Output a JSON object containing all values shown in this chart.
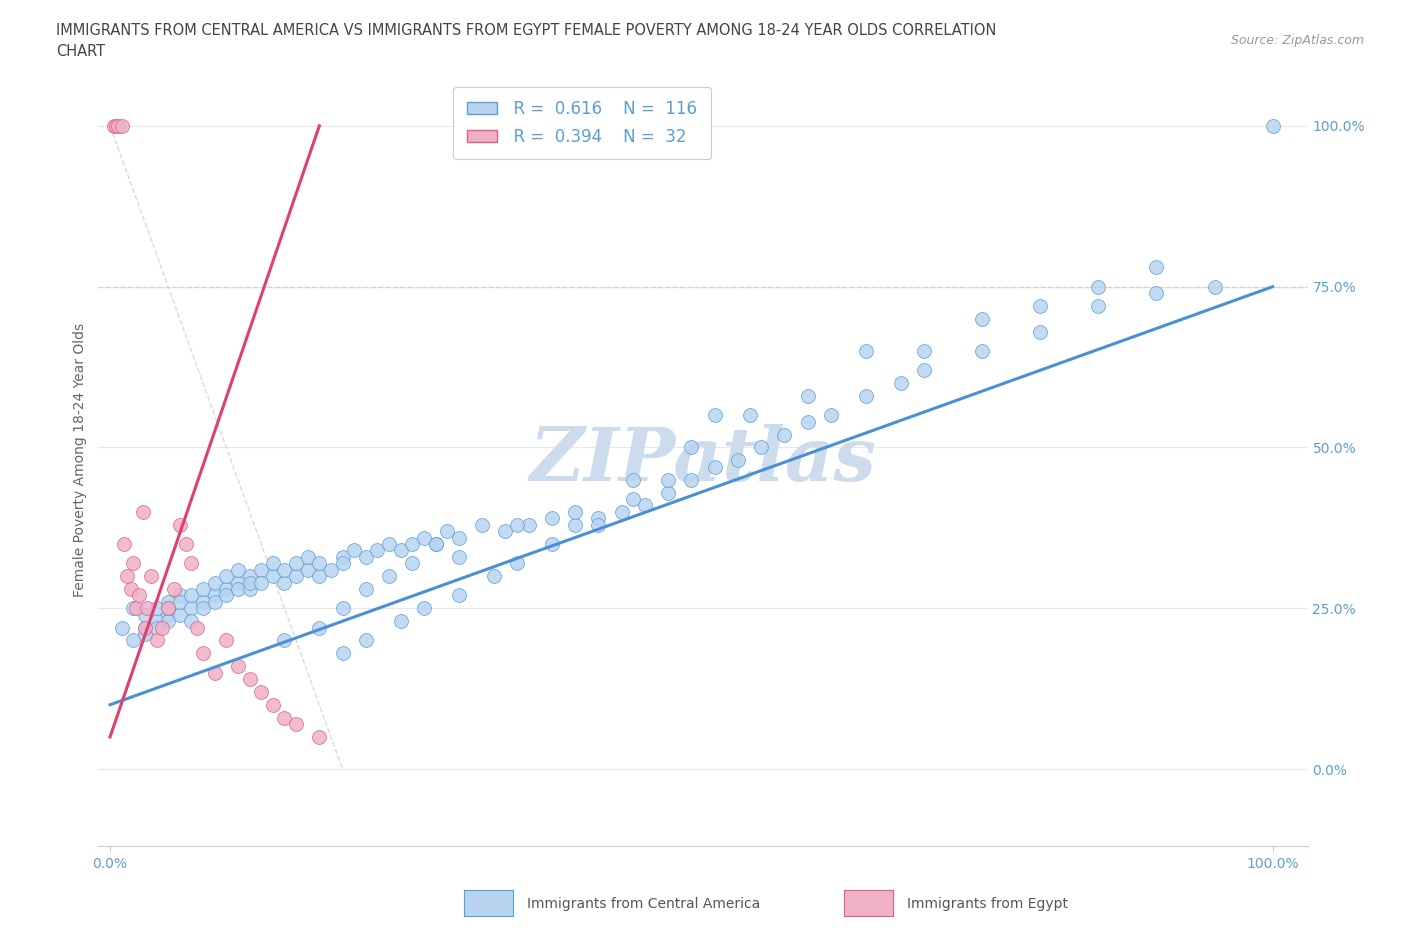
{
  "title_line1": "IMMIGRANTS FROM CENTRAL AMERICA VS IMMIGRANTS FROM EGYPT FEMALE POVERTY AMONG 18-24 YEAR OLDS CORRELATION",
  "title_line2": "CHART",
  "source_text": "Source: ZipAtlas.com",
  "ylabel": "Female Poverty Among 18-24 Year Olds",
  "ytick_values": [
    0,
    25,
    50,
    75,
    100
  ],
  "xlim": [
    -1,
    103
  ],
  "ylim": [
    -12,
    108
  ],
  "blue_R": 0.616,
  "blue_N": 116,
  "pink_R": 0.394,
  "pink_N": 32,
  "blue_color": "#b8d4f0",
  "pink_color": "#f0b0c8",
  "blue_edge_color": "#5a9fd4",
  "pink_edge_color": "#e06080",
  "blue_line_color": "#4a90d4",
  "pink_line_color": "#e04070",
  "watermark_color": "#ccdcec",
  "grid_color": "#e8e8e8",
  "title_color": "#444444",
  "ylabel_color": "#666666",
  "tick_color": "#5a9fd4",
  "legend_box_color": "#5a9fd4",
  "legend_R_color": "#5a9fd4",
  "dashed_line_y": 75,
  "blue_trend_x0": 0,
  "blue_trend_y0": 10,
  "blue_trend_x1": 100,
  "blue_trend_y1": 75,
  "pink_trend_x0": 0,
  "pink_trend_y0": 5,
  "pink_trend_x1": 18,
  "pink_trend_y1": 100,
  "blue_scatter_x": [
    1,
    2,
    2,
    3,
    3,
    3,
    4,
    4,
    4,
    5,
    5,
    5,
    5,
    6,
    6,
    6,
    7,
    7,
    7,
    8,
    8,
    8,
    9,
    9,
    9,
    10,
    10,
    10,
    11,
    11,
    11,
    12,
    12,
    12,
    13,
    13,
    14,
    14,
    15,
    15,
    16,
    16,
    17,
    17,
    18,
    18,
    19,
    20,
    20,
    21,
    22,
    23,
    24,
    25,
    26,
    27,
    28,
    29,
    30,
    32,
    34,
    36,
    38,
    40,
    42,
    44,
    46,
    48,
    50,
    52,
    54,
    56,
    58,
    60,
    62,
    65,
    68,
    70,
    75,
    80,
    85,
    90,
    95,
    100,
    15,
    18,
    20,
    22,
    24,
    26,
    28,
    30,
    35,
    40,
    45,
    50,
    55,
    60,
    65,
    70,
    75,
    80,
    85,
    90,
    52,
    48,
    45,
    42,
    38,
    35,
    33,
    30,
    27,
    25,
    22,
    20
  ],
  "blue_scatter_y": [
    22,
    20,
    25,
    22,
    24,
    21,
    23,
    25,
    22,
    24,
    26,
    23,
    25,
    27,
    24,
    26,
    25,
    27,
    23,
    26,
    28,
    25,
    27,
    29,
    26,
    28,
    30,
    27,
    29,
    31,
    28,
    30,
    28,
    29,
    31,
    29,
    30,
    32,
    29,
    31,
    30,
    32,
    31,
    33,
    30,
    32,
    31,
    33,
    32,
    34,
    33,
    34,
    35,
    34,
    35,
    36,
    35,
    37,
    36,
    38,
    37,
    38,
    39,
    38,
    39,
    40,
    41,
    43,
    45,
    47,
    48,
    50,
    52,
    54,
    55,
    58,
    60,
    62,
    65,
    68,
    72,
    74,
    75,
    100,
    20,
    22,
    25,
    28,
    30,
    32,
    35,
    33,
    38,
    40,
    45,
    50,
    55,
    58,
    65,
    65,
    70,
    72,
    75,
    78,
    55,
    45,
    42,
    38,
    35,
    32,
    30,
    27,
    25,
    23,
    20,
    18
  ],
  "pink_scatter_x": [
    0.3,
    0.5,
    0.7,
    1,
    1.2,
    1.5,
    1.8,
    2,
    2.2,
    2.5,
    2.8,
    3,
    3.2,
    3.5,
    4,
    4.5,
    5,
    5.5,
    6,
    6.5,
    7,
    7.5,
    8,
    9,
    10,
    11,
    12,
    13,
    14,
    15,
    16,
    18
  ],
  "pink_scatter_y": [
    100,
    100,
    100,
    100,
    35,
    30,
    28,
    32,
    25,
    27,
    40,
    22,
    25,
    30,
    20,
    22,
    25,
    28,
    38,
    35,
    32,
    22,
    18,
    15,
    20,
    16,
    14,
    12,
    10,
    8,
    7,
    5
  ],
  "bottom_legend_blue_label": "Immigrants from Central America",
  "bottom_legend_pink_label": "Immigrants from Egypt"
}
